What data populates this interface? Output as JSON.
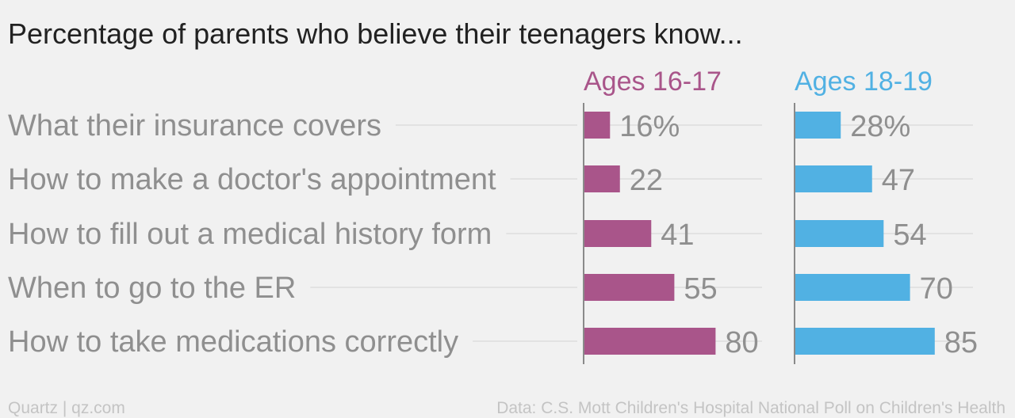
{
  "chart_data": {
    "type": "bar",
    "orientation": "horizontal",
    "title": "Percentage of parents who believe their teenagers know...",
    "categories": [
      "What their insurance covers",
      "How to make a doctor's appointment",
      "How to fill out a medical history form",
      "When to go to the ER",
      "How to take medications correctly"
    ],
    "series": [
      {
        "name": "Ages 16-17",
        "color": "#a9558a",
        "values": [
          16,
          22,
          41,
          55,
          80
        ],
        "labels": [
          "16%",
          "22",
          "41",
          "55",
          "80"
        ]
      },
      {
        "name": "Ages 18-19",
        "color": "#51b1e3",
        "values": [
          28,
          47,
          54,
          70,
          85
        ],
        "labels": [
          "28%",
          "47",
          "54",
          "70",
          "85"
        ]
      }
    ],
    "xlim": [
      0,
      100
    ],
    "grid": true,
    "legend": "panel headers"
  },
  "footer": {
    "source_left": "Quartz | qz.com",
    "source_right": "Data: C.S. Mott Children's Hospital National Poll on Children's Health"
  }
}
